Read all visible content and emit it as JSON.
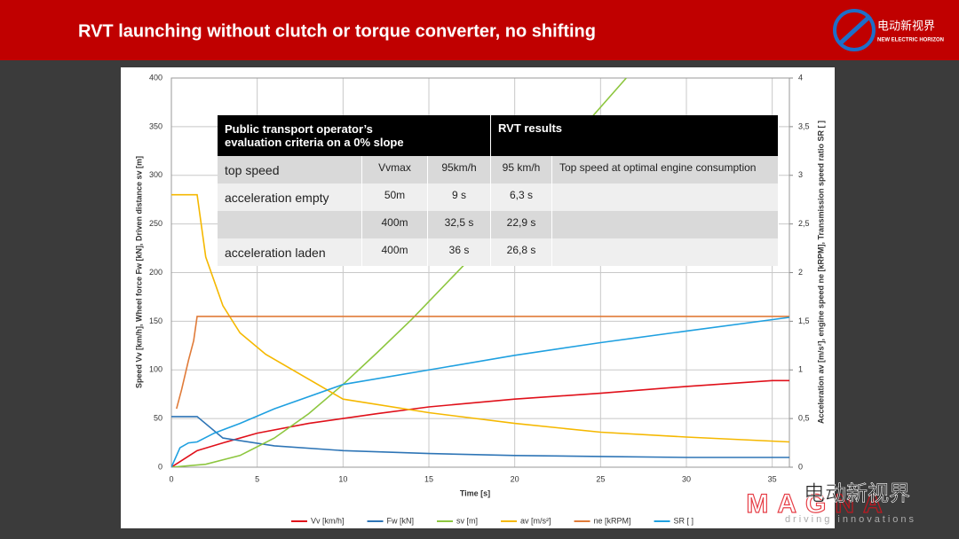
{
  "header": {
    "title": "RVT launching without clutch or torque converter, no shifting",
    "logo_cn": "电动新视界",
    "logo_en": "NEW ELECTRIC HORIZON"
  },
  "chart_data": {
    "type": "line",
    "xlabel": "Time [s]",
    "ylabel": "Speed Vv [km/h],  Wheel force Fw [kN],  Driven distance sv [m]",
    "y2label": "Acceleration av [m/s²],  engine speed ne [kRPM],  Transmission  speed ratio SR [ ]",
    "xlim": [
      0,
      36
    ],
    "xticks": [
      0,
      5,
      10,
      15,
      20,
      25,
      30,
      35
    ],
    "ylim": [
      0,
      400
    ],
    "yticks": [
      0,
      50,
      100,
      150,
      200,
      250,
      300,
      350,
      400
    ],
    "y2lim": [
      0,
      4
    ],
    "y2ticks": [
      0,
      {
        "value": 0.5,
        "label": "0,5"
      },
      1,
      {
        "value": 1.5,
        "label": "1,5"
      },
      2,
      {
        "value": 2.5,
        "label": "2,5"
      },
      3,
      {
        "value": 3.5,
        "label": "3,5"
      },
      4
    ],
    "grid": true,
    "series": [
      {
        "name": "Vv [km/h]",
        "color": "#e0101a",
        "x": [
          0,
          1.5,
          3,
          5,
          8,
          12,
          15,
          20,
          25,
          30,
          35,
          36
        ],
        "values": [
          0,
          17,
          25,
          35,
          45,
          55,
          62,
          70,
          76,
          83,
          89,
          89
        ]
      },
      {
        "name": "Fw [kN]",
        "color": "#2e75b6",
        "x": [
          0,
          1.5,
          3,
          6,
          10,
          15,
          20,
          25,
          30,
          36
        ],
        "values": [
          52,
          52,
          30,
          22,
          17,
          14,
          12,
          11,
          10,
          10
        ]
      },
      {
        "name": "sv [m]",
        "color": "#8dc63f",
        "x": [
          0,
          2,
          4,
          6,
          8,
          10,
          12,
          14,
          17,
          20,
          23,
          26.5
        ],
        "values": [
          0,
          3,
          12,
          30,
          55,
          85,
          118,
          152,
          207,
          262,
          330,
          400
        ]
      },
      {
        "name": "av [m/s²]",
        "color": "#f5b800",
        "axis": "y2",
        "x": [
          0,
          1.5,
          2,
          3,
          4,
          5.5,
          10,
          15,
          20,
          25,
          30,
          36
        ],
        "values": [
          2.8,
          2.8,
          2.16,
          1.66,
          1.38,
          1.16,
          0.7,
          0.56,
          0.45,
          0.36,
          0.31,
          0.26
        ]
      },
      {
        "name": "ne [kRPM]",
        "color": "#e07b39",
        "axis": "y2",
        "x": [
          0.3,
          0.6,
          1,
          1.3,
          1.5,
          36
        ],
        "values": [
          0.6,
          0.8,
          1.1,
          1.3,
          1.55,
          1.55
        ]
      },
      {
        "name": "SR [ ]",
        "color": "#1fa0e0",
        "axis": "y2",
        "x": [
          0,
          0.5,
          1,
          1.5,
          2.5,
          4,
          6,
          10,
          16,
          20,
          25,
          30,
          36
        ],
        "values": [
          0,
          0.2,
          0.25,
          0.26,
          0.35,
          0.45,
          0.6,
          0.85,
          1.03,
          1.15,
          1.28,
          1.4,
          1.54
        ]
      }
    ]
  },
  "table": {
    "header_left": [
      "Public transport operator’s",
      "evaluation criteria on a 0% slope"
    ],
    "header_right": "RVT results",
    "rows": [
      [
        "top speed",
        "Vvmax",
        "95km/h",
        "95 km/h",
        "Top speed at optimal engine consumption"
      ],
      [
        "acceleration empty",
        "50m",
        "9 s",
        "6,3 s",
        null
      ],
      [
        null,
        "400m",
        "32,5 s",
        "22,9 s",
        null
      ],
      [
        "acceleration laden",
        "400m",
        "36 s",
        "26,8 s",
        null
      ]
    ]
  },
  "watermark": {
    "cn": "电动新视界",
    "brand": "MAGNA",
    "tagline": "driving innovations"
  }
}
